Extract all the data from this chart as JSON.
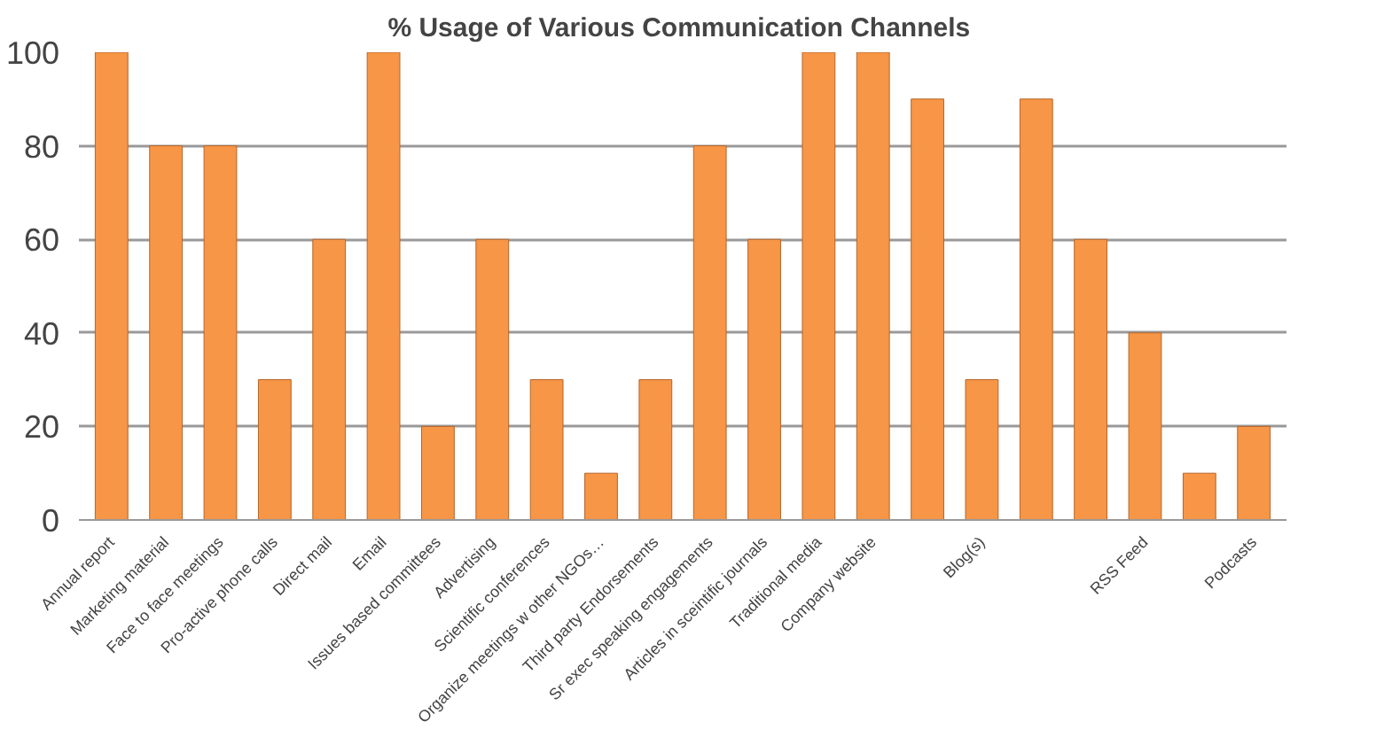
{
  "chart_data": {
    "type": "bar",
    "title": "%  Usage of Various Communication Channels",
    "categories": [
      "Annual report",
      "Marketing material",
      "Face to face meetings",
      "Pro-active phone calls",
      "Direct mail",
      "Email",
      "Issues based committees",
      "Advertising",
      "Scientific conferences",
      "Organize meetings w other NGOs…",
      "Third party Endorsements",
      "Sr exec speaking engagements",
      "Articles in sceintific journals",
      "Traditional media",
      "Company website",
      null,
      "Blog(s)",
      null,
      null,
      "RSS Feed",
      null,
      "Podcasts"
    ],
    "values": [
      100,
      80,
      80,
      30,
      60,
      100,
      20,
      60,
      30,
      10,
      30,
      80,
      60,
      100,
      100,
      90,
      30,
      90,
      60,
      40,
      10,
      20
    ],
    "color": "#f79646",
    "ylim": [
      0,
      100
    ],
    "yticks": [
      0,
      20,
      40,
      60,
      80,
      100
    ],
    "grid": "y"
  }
}
